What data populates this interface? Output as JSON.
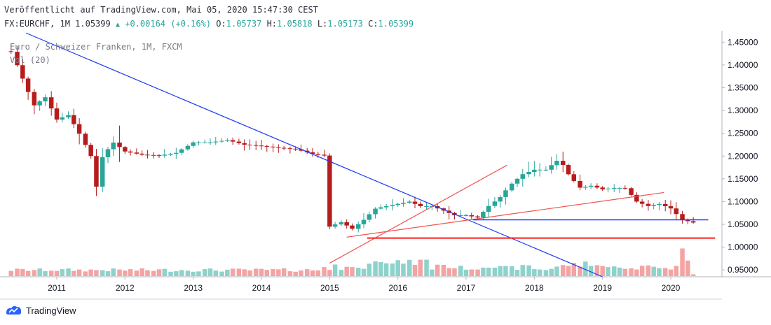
{
  "header": {
    "published": "Veröffentlicht auf TradingView.com, Mai 05, 2020 15:47:30 CEST",
    "symbol": "FX:EURCHF, 1M",
    "last": "1.05399",
    "change": "+0.00164 (+0.16%)",
    "o_label": "O:",
    "o_value": "1.05737",
    "h_label": "H:",
    "h_value": "1.05818",
    "l_label": "L:",
    "l_value": "1.05173",
    "c_label": "C:",
    "c_value": "1.05399"
  },
  "overlay": {
    "title": "Euro / Schweizer Franken, 1M, FXCM",
    "volume": "Vol (20)"
  },
  "brand": {
    "name": "TradingView",
    "icon": "tradingview-logo"
  },
  "colors": {
    "up": "#26a69a",
    "down": "#b71c1c",
    "vol_up": "#8dd2cb",
    "vol_down": "#f4a3a3",
    "trend_blue": "#1e3cf5",
    "trend_red": "#ef5350",
    "level_red": "#ff1a1a"
  },
  "chart_data": {
    "type": "candlestick",
    "title": "Euro / Schweizer Franken, 1M, FXCM",
    "xlabel": "",
    "ylabel": "",
    "ylim": [
      0.935,
      1.475
    ],
    "xlim": [
      2010.25,
      2020.75
    ],
    "grid": false,
    "y_ticks": [
      "1.45000",
      "1.40000",
      "1.35000",
      "1.30000",
      "1.25000",
      "1.20000",
      "1.15000",
      "1.10000",
      "1.05000",
      "1.00000",
      "0.95000"
    ],
    "x_ticks": [
      "2011",
      "2012",
      "2013",
      "2014",
      "2015",
      "2016",
      "2017",
      "2018",
      "2019",
      "2020"
    ],
    "candles": [],
    "volume_bars": [],
    "annotations": [
      {
        "type": "trendline",
        "color": "blue",
        "from": [
          2010.55,
          1.47
        ],
        "to": [
          2019.0,
          0.935
        ]
      },
      {
        "type": "trendline",
        "color": "red",
        "from": [
          2015.0,
          0.965
        ],
        "to": [
          2017.6,
          1.18
        ]
      },
      {
        "type": "trendline",
        "color": "red",
        "from": [
          2015.25,
          1.022
        ],
        "to": [
          2019.9,
          1.12
        ]
      },
      {
        "type": "hline",
        "color": "blue",
        "value": 1.06,
        "from": 2017.1,
        "to": 2020.55
      },
      {
        "type": "hline",
        "color": "red",
        "value": 1.02,
        "from": 2015.55,
        "to": 2020.65
      }
    ]
  }
}
